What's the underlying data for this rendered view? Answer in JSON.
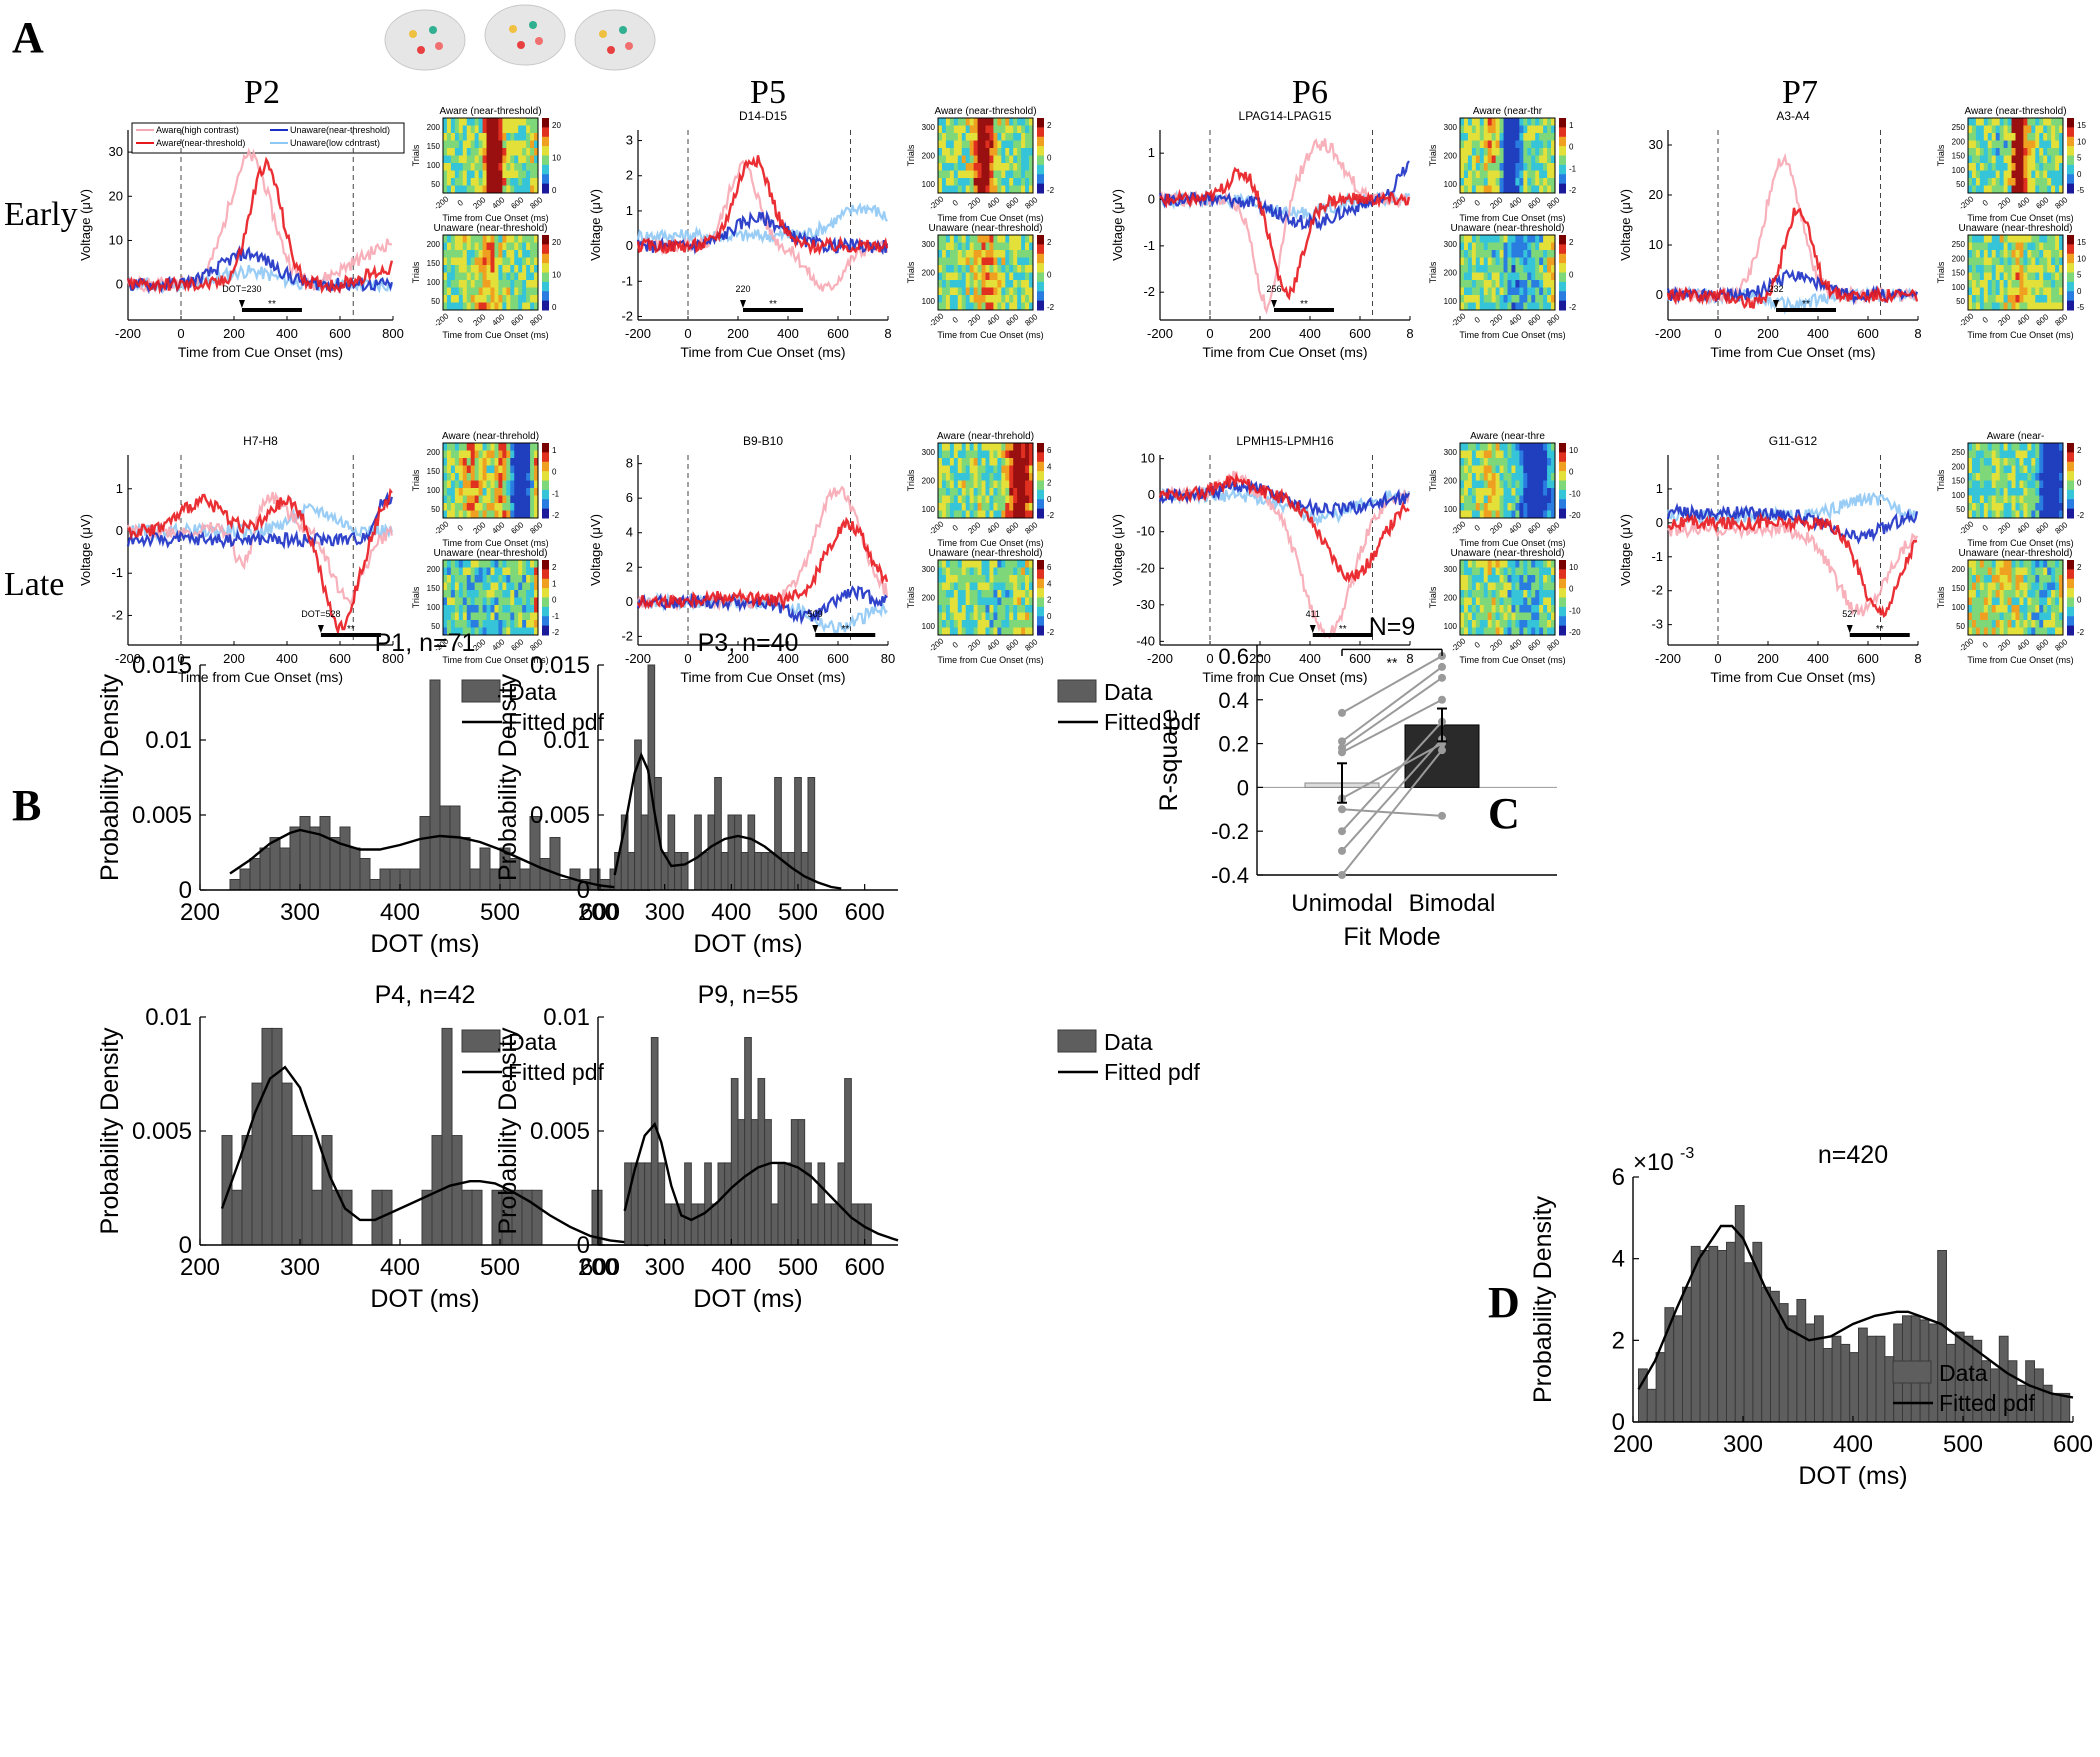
{
  "panel_letters": {
    "a": "A",
    "b": "B",
    "c": "C",
    "d": "D"
  },
  "panel_a": {
    "participants": [
      "P2",
      "P5",
      "P6",
      "P7"
    ],
    "rows": [
      "Early",
      "Late"
    ],
    "legend": {
      "aware_high": "Aware(high contrast)",
      "aware_near": "Aware(near-threshold)",
      "unaware_near": "Unaware(near-threshold)",
      "unaware_low": "Unaware(low contrast)"
    },
    "xlabel": "Time from Cue Onset (ms)",
    "ylabel": "Voltage (μV)",
    "heat_ylabel": "Trials",
    "heat_xticks": [
      "-200",
      "0",
      "200",
      "400",
      "600",
      "800"
    ],
    "colors": {
      "aware_high": "#f7a8b4",
      "aware_near": "#e8191e",
      "unaware_near": "#1a2fc4",
      "unaware_low": "#8ec8f5"
    },
    "plots": [
      {
        "participant": "P2",
        "row": "Early",
        "channel": "",
        "yticks": [
          "30",
          "20",
          "10",
          "0"
        ],
        "xticks": [
          "-200",
          "0",
          "200",
          "400",
          "600",
          "800"
        ],
        "dot_label": "DOT=230",
        "aware_title": "Aware (near-threshold)",
        "unaware_title": "Unaware (near-threshold)",
        "trials_ticks": [
          "200",
          "150",
          "100",
          "50"
        ],
        "trials_ticks2": [
          "200",
          "150",
          "100",
          "50"
        ],
        "cbar": [
          "20",
          "10",
          "0"
        ],
        "cbar2": [
          "20",
          "10",
          "0"
        ]
      },
      {
        "participant": "P5",
        "row": "Early",
        "channel": "D14-D15",
        "yticks": [
          "3",
          "2",
          "1",
          "0",
          "-1",
          "-2"
        ],
        "xticks": [
          "-200",
          "0",
          "200",
          "400",
          "600",
          "8"
        ],
        "dot_label": "220",
        "aware_title": "Aware (near-threshold)",
        "unaware_title": "Unaware (near-threshold)",
        "trials_ticks": [
          "300",
          "200",
          "100"
        ],
        "trials_ticks2": [
          "300",
          "200",
          "100"
        ],
        "cbar": [
          "2",
          "0",
          "-2"
        ],
        "cbar2": [
          "2",
          "0",
          "-2"
        ]
      },
      {
        "participant": "P6",
        "row": "Early",
        "channel": "LPAG14-LPAG15",
        "yticks": [
          "1",
          "0",
          "-1",
          "-2"
        ],
        "xticks": [
          "-200",
          "0",
          "200",
          "400",
          "600",
          "8"
        ],
        "dot_label": "256",
        "aware_title": "Aware (near-thr",
        "unaware_title": "Unaware (near-threshold)",
        "trials_ticks": [
          "300",
          "200",
          "100"
        ],
        "trials_ticks2": [
          "300",
          "200",
          "100"
        ],
        "cbar": [
          "1",
          "0",
          "-1",
          "-2"
        ],
        "cbar2": [
          "2",
          "0",
          "-2"
        ]
      },
      {
        "participant": "P7",
        "row": "Early",
        "channel": "A3-A4",
        "yticks": [
          "30",
          "20",
          "10",
          "0"
        ],
        "xticks": [
          "-200",
          "0",
          "200",
          "400",
          "600",
          "8"
        ],
        "dot_label": "232",
        "aware_title": "Aware (near-threshold)",
        "unaware_title": "Unaware (near-threshold)",
        "trials_ticks": [
          "250",
          "200",
          "150",
          "100",
          "50"
        ],
        "trials_ticks2": [
          "250",
          "200",
          "150",
          "100",
          "50"
        ],
        "cbar": [
          "15",
          "10",
          "5",
          "0",
          "-5"
        ],
        "cbar2": [
          "15",
          "10",
          "5",
          "0",
          "-5"
        ]
      },
      {
        "participant": "P2",
        "row": "Late",
        "channel": "H7-H8",
        "yticks": [
          "1",
          "0",
          "-1",
          "-2"
        ],
        "xticks": [
          "-200",
          "0",
          "200",
          "400",
          "600",
          "800"
        ],
        "dot_label": "DOT=528",
        "aware_title": "Aware (near-threhold)",
        "unaware_title": "Unaware (near-threshold)",
        "trials_ticks": [
          "200",
          "150",
          "100",
          "50"
        ],
        "trials_ticks2": [
          "200",
          "150",
          "100",
          "50"
        ],
        "cbar": [
          "1",
          "0",
          "-1",
          "-2"
        ],
        "cbar2": [
          "2",
          "1",
          "0",
          "-1",
          "-2"
        ]
      },
      {
        "participant": "P5",
        "row": "Late",
        "channel": "B9-B10",
        "yticks": [
          "8",
          "6",
          "4",
          "2",
          "0",
          "-2"
        ],
        "xticks": [
          "-200",
          "0",
          "200",
          "400",
          "600",
          "80"
        ],
        "dot_label": "509",
        "aware_title": "Aware (near-threhold)",
        "unaware_title": "Unaware (near-threshold)",
        "trials_ticks": [
          "300",
          "200",
          "100"
        ],
        "trials_ticks2": [
          "300",
          "200",
          "100"
        ],
        "cbar": [
          "6",
          "4",
          "2",
          "0",
          "-2"
        ],
        "cbar2": [
          "6",
          "4",
          "2",
          "0",
          "-2"
        ]
      },
      {
        "participant": "P6",
        "row": "Late",
        "channel": "LPMH15-LPMH16",
        "yticks": [
          "10",
          "0",
          "-10",
          "-20",
          "-30",
          "-40"
        ],
        "xticks": [
          "-200",
          "0",
          "200",
          "400",
          "600",
          "8"
        ],
        "dot_label": "411",
        "aware_title": "Aware (near-thre",
        "unaware_title": "Unaware (near-threshold)",
        "trials_ticks": [
          "300",
          "200",
          "100"
        ],
        "trials_ticks2": [
          "300",
          "200",
          "100"
        ],
        "cbar": [
          "10",
          "0",
          "-10",
          "-20"
        ],
        "cbar2": [
          "10",
          "0",
          "-10",
          "-20"
        ]
      },
      {
        "participant": "P7",
        "row": "Late",
        "channel": "G11-G12",
        "yticks": [
          "1",
          "0",
          "-1",
          "-2",
          "-3"
        ],
        "xticks": [
          "-200",
          "0",
          "200",
          "400",
          "600",
          "8"
        ],
        "dot_label": "527",
        "aware_title": "Aware (near-",
        "unaware_title": "Unaware (near-threshold)",
        "trials_ticks": [
          "250",
          "200",
          "150",
          "100",
          "50"
        ],
        "trials_ticks2": [
          "200",
          "150",
          "100",
          "50"
        ],
        "cbar": [
          "2",
          "0",
          "-2"
        ],
        "cbar2": [
          "2",
          "0",
          "-2"
        ]
      }
    ],
    "significance": "**"
  },
  "chart_data": [
    {
      "type": "bar",
      "panel": "B",
      "title": "P1, n=71",
      "xlabel": "DOT (ms)",
      "ylabel": "Probability Density",
      "legend": [
        "Data",
        "Fitted pdf"
      ],
      "xlim": [
        200,
        650
      ],
      "ylim": [
        0,
        0.015
      ],
      "xticks": [
        "200",
        "300",
        "400",
        "500",
        "600"
      ],
      "yticks": [
        "0",
        "0.005",
        "0.01",
        "0.015"
      ],
      "bin_start": 230,
      "bin_width": 10,
      "values": [
        0.0007,
        0.0014,
        0.0021,
        0.0028,
        0.0035,
        0.0028,
        0.0042,
        0.0049,
        0.0042,
        0.0049,
        0.0035,
        0.0042,
        0.0028,
        0.0021,
        0.0007,
        0.0014,
        0.0014,
        0.0014,
        0.0014,
        0.0049,
        0.014,
        0.0056,
        0.0056,
        0.0035,
        0.0014,
        0.0028,
        0.0014,
        0.0028,
        0.0021,
        0.0014,
        0.0049,
        0.0021,
        0.0035,
        0.0007,
        0.0014,
        0.0007,
        0.0014,
        0.0007,
        0.0014,
        0.0007
      ],
      "fitted_pdf": {
        "x": [
          230,
          250,
          270,
          290,
          300,
          320,
          340,
          360,
          380,
          400,
          420,
          440,
          460,
          480,
          500,
          520,
          540,
          560,
          580,
          600,
          620,
          640,
          650
        ],
        "y": [
          0.0011,
          0.002,
          0.0031,
          0.0038,
          0.004,
          0.0037,
          0.0031,
          0.0027,
          0.0027,
          0.003,
          0.0034,
          0.0036,
          0.0035,
          0.0032,
          0.0027,
          0.0021,
          0.0015,
          0.001,
          0.0006,
          0.0003,
          0.00015,
          6e-05,
          3e-05
        ]
      }
    },
    {
      "type": "bar",
      "panel": "B",
      "title": "P3, n=40",
      "xlabel": "DOT (ms)",
      "ylabel": "Probability Density",
      "legend": [
        "Data",
        "Fitted pdf"
      ],
      "xlim": [
        200,
        650
      ],
      "ylim": [
        0,
        0.015
      ],
      "xticks": [
        "200",
        "300",
        "400",
        "500",
        "600"
      ],
      "yticks": [
        "0",
        "0.005",
        "0.01",
        "0.015"
      ],
      "bin_start": 225,
      "bin_width": 10,
      "values": [
        0.0025,
        0.005,
        0.0025,
        0.01,
        0.005,
        0.015,
        0.0075,
        0.0025,
        0.005,
        0.0025,
        0.0025,
        0,
        0.005,
        0.0025,
        0.005,
        0.0075,
        0.0025,
        0.005,
        0.005,
        0.0025,
        0.005,
        0.0025,
        0.0025,
        0.0025,
        0.0075,
        0.0025,
        0.0025,
        0.0075,
        0.0025,
        0.0075
      ],
      "fitted_pdf": {
        "x": [
          225,
          240,
          255,
          265,
          275,
          285,
          295,
          310,
          330,
          350,
          370,
          390,
          410,
          430,
          450,
          470,
          490,
          510,
          530,
          550,
          565
        ],
        "y": [
          0.001,
          0.0042,
          0.0078,
          0.009,
          0.008,
          0.0051,
          0.0027,
          0.0016,
          0.0017,
          0.0022,
          0.0029,
          0.0034,
          0.0036,
          0.0034,
          0.0029,
          0.0022,
          0.0015,
          0.0009,
          0.0005,
          0.0002,
          0.0001
        ]
      }
    },
    {
      "type": "bar",
      "panel": "B",
      "title": "P4, n=42",
      "xlabel": "DOT (ms)",
      "ylabel": "Probability Density",
      "legend": [
        "Data",
        "Fitted pdf"
      ],
      "xlim": [
        200,
        650
      ],
      "ylim": [
        0,
        0.01
      ],
      "xticks": [
        "200",
        "300",
        "400",
        "500",
        "600"
      ],
      "yticks": [
        "0",
        "0.005",
        "0.01"
      ],
      "bin_start": 222,
      "bin_width": 10,
      "values": [
        0.0048,
        0.0024,
        0.0048,
        0.0071,
        0.0095,
        0.0095,
        0.0071,
        0.0048,
        0.0048,
        0.0024,
        0.0048,
        0.0024,
        0.0024,
        0,
        0,
        0.0024,
        0.0024,
        0,
        0,
        0,
        0.0024,
        0.0048,
        0.0095,
        0.0048,
        0.0024,
        0.0024,
        0,
        0.0024,
        0.0024,
        0.0024,
        0.0024,
        0.0024,
        0,
        0,
        0,
        0,
        0,
        0.0024
      ],
      "fitted_pdf": {
        "x": [
          222,
          240,
          255,
          270,
          285,
          300,
          315,
          330,
          345,
          360,
          375,
          390,
          410,
          430,
          450,
          470,
          480,
          495,
          510,
          530,
          550,
          570,
          590,
          610,
          630,
          648
        ],
        "y": [
          0.0016,
          0.0038,
          0.0058,
          0.0073,
          0.0078,
          0.0069,
          0.005,
          0.003,
          0.0016,
          0.0011,
          0.0011,
          0.0014,
          0.0018,
          0.0022,
          0.0026,
          0.0028,
          0.0028,
          0.0027,
          0.0024,
          0.0019,
          0.0013,
          0.0008,
          0.0004,
          0.0002,
          0.0001,
          0
        ]
      }
    },
    {
      "type": "bar",
      "panel": "B",
      "title": "P9, n=55",
      "xlabel": "DOT (ms)",
      "ylabel": "Probability Density",
      "legend": [
        "Data",
        "Fitted pdf"
      ],
      "xlim": [
        200,
        650
      ],
      "ylim": [
        0,
        0.01
      ],
      "xticks": [
        "200",
        "300",
        "400",
        "500",
        "600"
      ],
      "yticks": [
        "0",
        "0.005",
        "0.01"
      ],
      "bin_start": 240,
      "bin_width": 10,
      "values": [
        0.0036,
        0.0036,
        0.0036,
        0.0036,
        0.0091,
        0.0036,
        0.0018,
        0.0018,
        0.0018,
        0.0036,
        0.0018,
        0.0018,
        0.0036,
        0.0018,
        0.0036,
        0.0036,
        0.0073,
        0.0055,
        0.0091,
        0.0055,
        0.0073,
        0.0055,
        0.0018,
        0.0036,
        0.0036,
        0.0055,
        0.0055,
        0.0036,
        0.0018,
        0.0036,
        0.0018,
        0.0018,
        0.0036,
        0.0073,
        0.0018,
        0.0018,
        0.0018
      ],
      "fitted_pdf": {
        "x": [
          240,
          255,
          270,
          285,
          295,
          310,
          325,
          340,
          360,
          380,
          400,
          420,
          440,
          460,
          480,
          500,
          520,
          540,
          560,
          580,
          600,
          620,
          640,
          650
        ],
        "y": [
          0.0015,
          0.0033,
          0.0048,
          0.0053,
          0.0045,
          0.0026,
          0.0013,
          0.0011,
          0.0014,
          0.0019,
          0.0025,
          0.003,
          0.0034,
          0.0036,
          0.0036,
          0.0034,
          0.003,
          0.0024,
          0.0018,
          0.0012,
          0.0008,
          0.0005,
          0.0003,
          0.0002
        ]
      }
    },
    {
      "type": "bar",
      "panel": "C",
      "title": "N=9",
      "xlabel": "Fit Mode",
      "ylabel": "R-square",
      "categories": [
        "Unimodal",
        "Bimodal"
      ],
      "values": [
        0.02,
        0.285
      ],
      "error": [
        0.09,
        0.075
      ],
      "ylim": [
        -0.4,
        0.65
      ],
      "yticks": [
        "0.6",
        "0.4",
        "0.2",
        "0",
        "-0.2",
        "-0.4"
      ],
      "significance": "**",
      "paired_points": [
        [
          -0.4,
          0.17
        ],
        [
          -0.29,
          0.22
        ],
        [
          -0.2,
          0.3
        ],
        [
          -0.1,
          -0.13
        ],
        [
          -0.05,
          0.2
        ],
        [
          0.16,
          0.4
        ],
        [
          0.18,
          0.5
        ],
        [
          0.21,
          0.55
        ],
        [
          0.34,
          0.6
        ]
      ]
    },
    {
      "type": "bar",
      "panel": "D",
      "title": "n=420",
      "xlabel": "DOT (ms)",
      "ylabel": "Probability Density",
      "exponent_label": "×10",
      "exponent_power": "-3",
      "legend": [
        "Data",
        "Fitted pdf"
      ],
      "xlim": [
        200,
        600
      ],
      "ylim": [
        0,
        6
      ],
      "xticks": [
        "200",
        "300",
        "400",
        "500",
        "600"
      ],
      "yticks": [
        "0",
        "2",
        "4",
        "6"
      ],
      "bin_start": 205,
      "bin_width": 8,
      "values": [
        1.3,
        0.8,
        1.7,
        2.8,
        2.6,
        3.3,
        4.3,
        4.2,
        4.3,
        4.2,
        4.4,
        5.3,
        3.9,
        4.4,
        3.3,
        3.2,
        2.9,
        2.6,
        3.0,
        2.4,
        2.6,
        1.8,
        2.1,
        1.9,
        1.7,
        2.3,
        2.1,
        2.1,
        1.6,
        2.4,
        2.6,
        2.6,
        2.5,
        2.4,
        4.2,
        1.9,
        2.2,
        2.1,
        2.0,
        1.5,
        1.3,
        2.1,
        1.5,
        0.9,
        1.5,
        1.3,
        0.9,
        0.7,
        0.7
      ],
      "fitted_pdf": {
        "x": [
          205,
          220,
          240,
          260,
          280,
          290,
          300,
          320,
          340,
          360,
          380,
          400,
          420,
          440,
          450,
          460,
          480,
          500,
          520,
          540,
          560,
          580,
          600
        ],
        "y": [
          0.8,
          1.5,
          2.8,
          4.0,
          4.8,
          4.8,
          4.5,
          3.3,
          2.3,
          2.0,
          2.1,
          2.4,
          2.6,
          2.7,
          2.7,
          2.6,
          2.4,
          2.0,
          1.6,
          1.2,
          0.9,
          0.7,
          0.6
        ]
      }
    }
  ]
}
